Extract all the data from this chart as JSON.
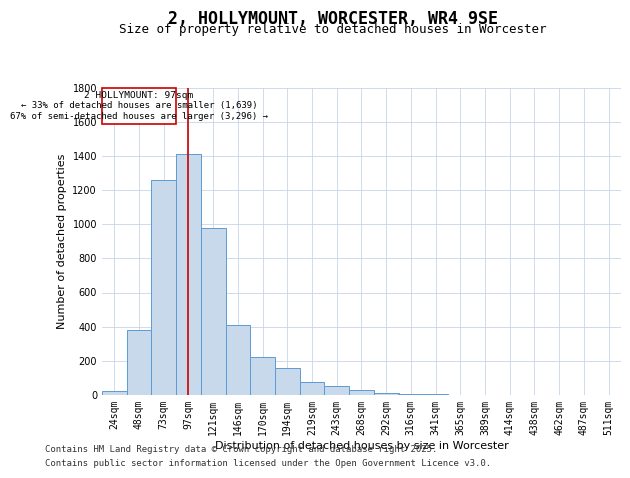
{
  "title": "2, HOLLYMOUNT, WORCESTER, WR4 9SE",
  "subtitle": "Size of property relative to detached houses in Worcester",
  "xlabel": "Distribution of detached houses by size in Worcester",
  "ylabel": "Number of detached properties",
  "categories": [
    "24sqm",
    "48sqm",
    "73sqm",
    "97sqm",
    "121sqm",
    "146sqm",
    "170sqm",
    "194sqm",
    "219sqm",
    "243sqm",
    "268sqm",
    "292sqm",
    "316sqm",
    "341sqm",
    "365sqm",
    "389sqm",
    "414sqm",
    "438sqm",
    "462sqm",
    "487sqm",
    "511sqm"
  ],
  "values": [
    25,
    380,
    1260,
    1410,
    980,
    410,
    225,
    160,
    75,
    55,
    30,
    10,
    5,
    3,
    2,
    1,
    0,
    0,
    0,
    0,
    0
  ],
  "bar_color": "#c9d9ec",
  "bar_edge_color": "#5b9bd5",
  "marker_index": 3,
  "marker_label": "2 HOLLYMOUNT: 97sqm",
  "annotation_line1": "← 33% of detached houses are smaller (1,639)",
  "annotation_line2": "67% of semi-detached houses are larger (3,296) →",
  "annotation_box_color": "#cc0000",
  "marker_line_color": "#cc0000",
  "ylim": [
    0,
    1800
  ],
  "yticks": [
    0,
    200,
    400,
    600,
    800,
    1000,
    1200,
    1400,
    1600,
    1800
  ],
  "footer_line1": "Contains HM Land Registry data © Crown copyright and database right 2025.",
  "footer_line2": "Contains public sector information licensed under the Open Government Licence v3.0.",
  "bg_color": "#ffffff",
  "grid_color": "#c8d4e8",
  "title_fontsize": 12,
  "subtitle_fontsize": 9,
  "axis_label_fontsize": 8,
  "tick_fontsize": 7,
  "footer_fontsize": 6.5
}
